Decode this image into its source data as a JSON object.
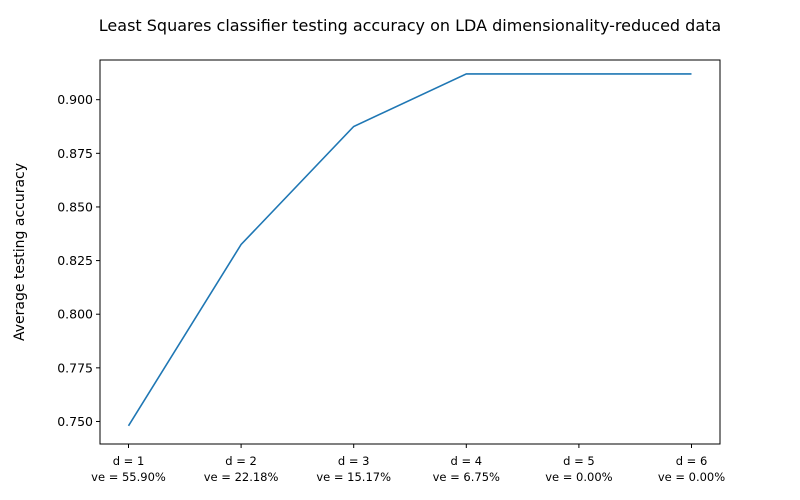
{
  "chart_data": {
    "type": "line",
    "title": "Least Squares classifier testing accuracy on LDA dimensionality-reduced data",
    "xlabel": "",
    "ylabel": "Average testing accuracy",
    "categories": [
      [
        "d = 1",
        "ve = 55.90%"
      ],
      [
        "d = 2",
        "ve = 22.18%"
      ],
      [
        "d = 3",
        "ve = 15.17%"
      ],
      [
        "d = 4",
        "ve = 6.75%"
      ],
      [
        "d = 5",
        "ve = 0.00%"
      ],
      [
        "d = 6",
        "ve = 0.00%"
      ]
    ],
    "series": [
      {
        "values": [
          0.748,
          0.8325,
          0.8875,
          0.912,
          0.912,
          0.912
        ]
      }
    ],
    "ylim": [
      0.7395,
      0.9185
    ],
    "yticks": [
      "0.750",
      "0.775",
      "0.800",
      "0.825",
      "0.850",
      "0.875",
      "0.900"
    ],
    "grid": false,
    "line_color": "#1f77b4"
  }
}
